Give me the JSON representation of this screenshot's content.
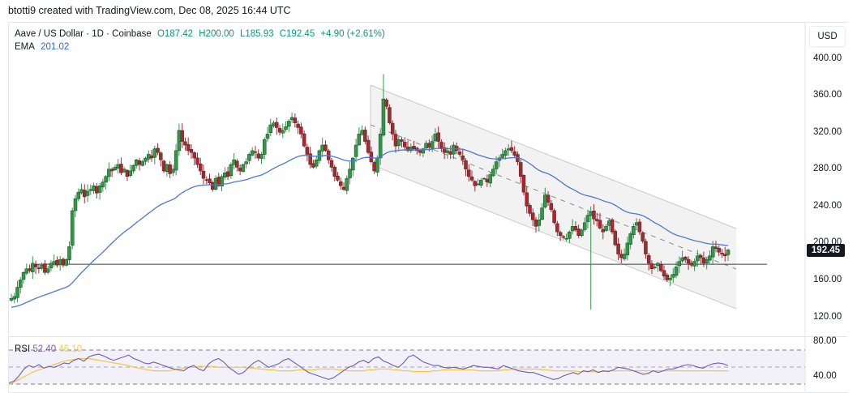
{
  "credit": "btotti9 created with TradingView.com, Dec 08, 2025 16:44 UTC",
  "legend": {
    "symbol": "Aave / US Dollar · 1D · Coinbase",
    "open": "O187.42",
    "high": "H200.00",
    "low": "L185.93",
    "close": "C192.45",
    "change": "+4.90 (+2.61%)",
    "ema_label": "EMA",
    "ema_value": "201.02"
  },
  "currency_button": "USD",
  "price_axis": {
    "ticks": [
      "400.00",
      "360.00",
      "320.00",
      "280.00",
      "240.00",
      "200.00",
      "160.00",
      "120.00"
    ],
    "last_price": "192.45"
  },
  "rsi": {
    "label": "RSI",
    "value": "52.40",
    "ma_value": "46.10",
    "ticks": [
      "80.00",
      "40.00"
    ]
  },
  "colors": {
    "up": "#2e9a48",
    "down": "#b5222f",
    "ema": "#4a78d8",
    "rsi": "#6e5bb8",
    "rsi_ma": "#f5c842",
    "channel_fill": "#f2f2f3",
    "channel_line": "#c8c9cc"
  },
  "chart_data": {
    "type": "candlestick",
    "title": "Aave / US Dollar · 1D · Coinbase",
    "ylabel": "USD",
    "ylim": [
      110,
      410
    ],
    "horizontal_line": 177,
    "last_close": 192.45,
    "ema_last": 201.02,
    "channel": {
      "upper": [
        [
          457,
          105
        ],
        [
          908,
          282
        ]
      ],
      "lower": [
        [
          457,
          203
        ],
        [
          908,
          381
        ]
      ],
      "mid": [
        [
          457,
          154
        ],
        [
          908,
          332
        ]
      ]
    },
    "closes": [
      140,
      142,
      152,
      160,
      168,
      172,
      170,
      178,
      174,
      172,
      176,
      168,
      172,
      178,
      180,
      176,
      182,
      176,
      182,
      196,
      235,
      248,
      255,
      258,
      250,
      256,
      258,
      262,
      254,
      262,
      266,
      272,
      280,
      278,
      282,
      285,
      276,
      280,
      272,
      278,
      284,
      290,
      285,
      288,
      292,
      296,
      292,
      302,
      298,
      290,
      278,
      285,
      275,
      280,
      300,
      322,
      310,
      306,
      300,
      298,
      292,
      285,
      278,
      270,
      268,
      265,
      258,
      270,
      262,
      272,
      276,
      272,
      285,
      290,
      282,
      278,
      285,
      288,
      296,
      300,
      298,
      292,
      296,
      312,
      318,
      328,
      330,
      325,
      320,
      322,
      326,
      332,
      336,
      330,
      325,
      318,
      305,
      296,
      285,
      282,
      290,
      300,
      306,
      300,
      290,
      282,
      272,
      268,
      262,
      258,
      270,
      280,
      292,
      306,
      318,
      322,
      310,
      298,
      288,
      278,
      292,
      318,
      356,
      348,
      330,
      318,
      305,
      312,
      310,
      304,
      300,
      304,
      302,
      300,
      298,
      302,
      308,
      304,
      310,
      318,
      310,
      302,
      298,
      300,
      296,
      306,
      300,
      296,
      290,
      280,
      272,
      268,
      262,
      264,
      268,
      270,
      266,
      274,
      280,
      288,
      292,
      296,
      300,
      302,
      300,
      295,
      288,
      272,
      255,
      240,
      232,
      225,
      218,
      225,
      238,
      252,
      244,
      236,
      222,
      212,
      208,
      206,
      205,
      212,
      218,
      214,
      208,
      214,
      222,
      230,
      234,
      226,
      224,
      216,
      212,
      218,
      224,
      212,
      198,
      188,
      184,
      188,
      200,
      210,
      218,
      222,
      212,
      202,
      188,
      178,
      172,
      174,
      178,
      170,
      164,
      160,
      162,
      166,
      174,
      180,
      184,
      182,
      178,
      176,
      180,
      186,
      184,
      178,
      182,
      186,
      196,
      194,
      190,
      188,
      186,
      192.45
    ],
    "rsi_values": [
      32,
      34,
      40,
      48,
      52,
      50,
      53,
      49,
      51,
      50,
      52,
      55,
      54,
      58,
      60,
      57,
      62,
      64,
      65,
      63,
      60,
      58,
      60,
      62,
      64,
      60,
      58,
      55,
      54,
      56,
      54,
      52,
      50,
      48,
      47,
      46,
      50,
      52,
      48,
      46,
      54,
      58,
      60,
      56,
      50,
      46,
      42,
      44,
      50,
      55,
      58,
      54,
      50,
      52,
      54,
      58,
      60,
      56,
      52,
      48,
      44,
      42,
      40,
      38,
      36,
      38,
      42,
      46,
      50,
      52,
      56,
      58,
      55,
      60,
      62,
      57,
      55,
      52,
      50,
      55,
      62,
      64,
      60,
      56,
      54,
      52,
      52,
      50,
      49,
      50,
      49,
      48,
      50,
      52,
      51,
      50,
      50,
      49,
      48,
      52,
      50,
      48,
      46,
      45,
      44,
      44,
      42,
      40,
      38,
      36,
      37,
      40,
      42,
      44,
      42,
      46,
      45,
      47,
      44,
      46,
      45,
      47,
      50,
      49,
      48,
      46,
      44,
      42,
      43,
      46,
      44,
      46,
      48,
      48,
      50,
      52,
      53,
      52,
      50,
      49,
      52,
      54,
      55,
      54,
      52
    ],
    "rsi_ma_values": [
      30,
      33,
      36,
      39,
      42,
      45,
      47,
      49,
      51,
      53,
      55,
      57,
      58,
      59,
      60,
      60,
      60,
      59,
      58,
      57,
      56,
      55,
      54,
      53,
      52,
      50,
      49,
      48,
      47,
      46,
      46,
      46,
      46,
      47,
      48,
      49,
      50,
      50,
      51,
      51,
      51,
      51,
      50,
      50,
      50,
      50,
      50,
      50,
      49,
      49,
      48,
      48,
      47,
      47,
      46,
      46,
      46,
      46,
      47,
      47,
      47,
      47,
      48,
      48,
      48,
      48,
      47,
      47,
      46,
      46,
      46,
      46,
      47,
      47,
      48,
      48,
      48,
      47,
      47,
      46,
      46,
      45,
      45,
      45,
      45,
      46,
      46,
      47,
      47,
      47,
      47,
      47,
      47,
      47,
      46,
      46,
      46,
      46,
      46,
      47,
      47,
      48,
      48,
      48,
      48,
      48,
      48,
      47,
      47,
      46,
      46,
      46,
      46,
      46,
      45,
      45,
      45,
      45,
      45,
      45,
      46,
      46,
      46,
      46,
      46,
      46,
      46,
      46,
      46,
      46,
      46,
      46,
      46,
      46,
      46,
      46,
      46,
      46,
      46,
      46,
      46,
      46,
      46,
      46,
      46,
      46,
      46,
      46,
      46,
      46,
      46,
      46,
      46,
      46,
      46,
      46
    ]
  }
}
